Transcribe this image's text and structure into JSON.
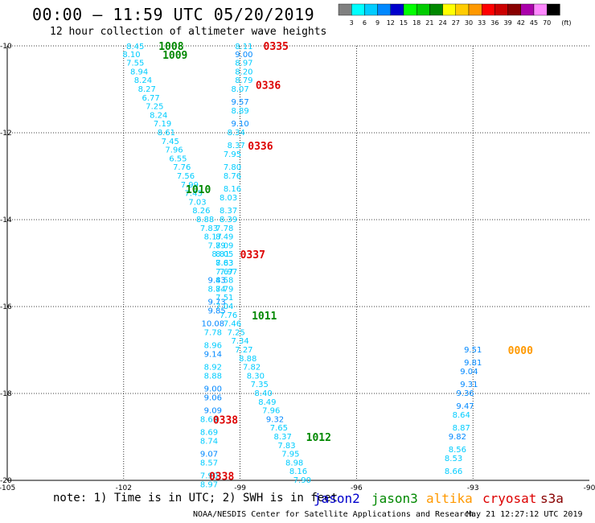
{
  "title": "00:00 – 11:59 UTC 05/20/2019",
  "subtitle": "12 hour collection of altimeter wave heights",
  "note": "note: 1) Time is in UTC; 2) SWH is in feet",
  "credit": "NOAA/NESDIS Center for Satellite Applications and Research",
  "timestamp": "May 21 12:27:12 UTC 2019",
  "legend": [
    {
      "name": "jason2",
      "color": "#0000cc"
    },
    {
      "name": "jason3",
      "color": "#008800"
    },
    {
      "name": "altika",
      "color": "#ff9900"
    },
    {
      "name": "cryosat",
      "color": "#dd0000"
    },
    {
      "name": "s3a",
      "color": "#880000"
    }
  ],
  "colorbar": {
    "unit": "(ft)",
    "labels": [
      "3",
      "6",
      "9",
      "12",
      "15",
      "18",
      "21",
      "24",
      "27",
      "30",
      "33",
      "36",
      "39",
      "42",
      "45",
      "70"
    ],
    "colors": [
      "#808080",
      "#00ffff",
      "#00ccff",
      "#0088ff",
      "#0000cc",
      "#00ff00",
      "#00cc00",
      "#008800",
      "#ffff00",
      "#ffcc00",
      "#ff9900",
      "#ff0000",
      "#cc0000",
      "#880000",
      "#aa00aa",
      "#ff88ff",
      "#000000"
    ]
  },
  "chart_data": {
    "type": "scatter",
    "xlim": [
      -105,
      -90
    ],
    "ylim": [
      -20,
      -10
    ],
    "xticks": [
      -105,
      -102,
      -99,
      -96,
      -93,
      -90
    ],
    "yticks": [
      -10,
      -12,
      -14,
      -16,
      -18,
      -20
    ],
    "grid": true,
    "tracks": [
      {
        "points": [
          [
            -101.7,
            -10.0,
            "8.45"
          ],
          [
            -101.8,
            -10.2,
            "8.10"
          ],
          [
            -101.7,
            -10.4,
            "7.55"
          ],
          [
            -101.6,
            -10.6,
            "8.94"
          ],
          [
            -101.5,
            -10.8,
            "8.24"
          ],
          [
            -101.4,
            -11.0,
            "8.27"
          ],
          [
            -101.3,
            -11.2,
            "6.77"
          ],
          [
            -101.2,
            -11.4,
            "7.25"
          ],
          [
            -101.1,
            -11.6,
            "8.24"
          ],
          [
            -101.0,
            -11.8,
            "7.19"
          ],
          [
            -100.9,
            -12.0,
            "8.61"
          ],
          [
            -100.8,
            -12.2,
            "7.45"
          ],
          [
            -100.7,
            -12.4,
            "7.96"
          ],
          [
            -100.6,
            -12.6,
            "6.55"
          ],
          [
            -100.5,
            -12.8,
            "7.76"
          ],
          [
            -100.4,
            -13.0,
            "7.56"
          ],
          [
            -100.3,
            -13.2,
            "7.99"
          ],
          [
            -100.2,
            -13.4,
            "7.45"
          ],
          [
            -100.1,
            -13.6,
            "7.03"
          ],
          [
            -100.0,
            -13.8,
            "8.26"
          ],
          [
            -99.9,
            -14.0,
            "8.88"
          ],
          [
            -99.8,
            -14.2,
            "7.83"
          ],
          [
            -99.7,
            -14.4,
            "8.17"
          ],
          [
            -99.6,
            -14.6,
            "7.79"
          ],
          [
            -99.5,
            -14.8,
            "8.81"
          ],
          [
            -99.4,
            -15.0,
            "7.63"
          ],
          [
            -99.3,
            -15.2,
            "7.97"
          ],
          [
            -99.6,
            -15.4,
            "9.43"
          ],
          [
            -99.6,
            -15.6,
            "8.84"
          ],
          [
            -99.6,
            -15.9,
            "9.73"
          ],
          [
            -99.6,
            -16.1,
            "9.85"
          ],
          [
            -99.7,
            -16.4,
            "10.08"
          ],
          [
            -99.7,
            -16.6,
            "7.78"
          ],
          [
            -99.7,
            -16.9,
            "8.96"
          ],
          [
            -99.7,
            -17.1,
            "9.14"
          ],
          [
            -99.7,
            -17.4,
            "8.92"
          ],
          [
            -99.7,
            -17.6,
            "8.88"
          ],
          [
            -99.7,
            -17.9,
            "9.00"
          ],
          [
            -99.7,
            -18.1,
            "9.06"
          ],
          [
            -99.7,
            -18.4,
            "9.09"
          ],
          [
            -99.8,
            -18.6,
            "8.69"
          ],
          [
            -99.8,
            -18.9,
            "8.69"
          ],
          [
            -99.8,
            -19.1,
            "8.74"
          ],
          [
            -99.8,
            -19.4,
            "9.07"
          ],
          [
            -99.8,
            -19.6,
            "8.57"
          ],
          [
            -99.8,
            -19.9,
            "7.90"
          ],
          [
            -99.8,
            -20.1,
            "8.97"
          ]
        ]
      },
      {
        "points": [
          [
            -98.9,
            -10.0,
            "8.11"
          ],
          [
            -98.9,
            -10.2,
            "9.00"
          ],
          [
            -98.9,
            -10.4,
            "8.97"
          ],
          [
            -98.9,
            -10.6,
            "8.20"
          ],
          [
            -98.9,
            -10.8,
            "8.79"
          ],
          [
            -99.0,
            -11.0,
            "8.07"
          ],
          [
            -99.0,
            -11.3,
            "9.57"
          ],
          [
            -99.0,
            -11.5,
            "8.89"
          ],
          [
            -99.0,
            -11.8,
            "9.10"
          ],
          [
            -99.1,
            -12.0,
            "8.34"
          ],
          [
            -99.1,
            -12.3,
            "8.37"
          ],
          [
            -99.2,
            -12.5,
            "7.95"
          ],
          [
            -99.2,
            -12.8,
            "7.80"
          ],
          [
            -99.2,
            -13.0,
            "8.76"
          ],
          [
            -99.2,
            -13.3,
            "8.16"
          ],
          [
            -99.3,
            -13.5,
            "8.03"
          ],
          [
            -99.3,
            -13.8,
            "8.37"
          ],
          [
            -99.3,
            -14.0,
            "8.39"
          ],
          [
            -99.4,
            -14.2,
            "7.78"
          ],
          [
            -99.4,
            -14.4,
            "8.49"
          ],
          [
            -99.4,
            -14.6,
            "8.09"
          ],
          [
            -99.4,
            -14.8,
            "8.05"
          ],
          [
            -99.4,
            -15.0,
            "8.83"
          ],
          [
            -99.4,
            -15.2,
            "7.67"
          ],
          [
            -99.4,
            -15.4,
            "8.58"
          ],
          [
            -99.4,
            -15.6,
            "7.79"
          ],
          [
            -99.4,
            -15.8,
            "7.51"
          ],
          [
            -99.4,
            -16.0,
            "7.04"
          ],
          [
            -99.3,
            -16.2,
            "7.76"
          ],
          [
            -99.2,
            -16.4,
            "7.46"
          ],
          [
            -99.1,
            -16.6,
            "7.25"
          ],
          [
            -99.0,
            -16.8,
            "7.34"
          ],
          [
            -98.9,
            -17.0,
            "7.27"
          ],
          [
            -98.8,
            -17.2,
            "8.88"
          ],
          [
            -98.7,
            -17.4,
            "7.82"
          ],
          [
            -98.6,
            -17.6,
            "8.30"
          ],
          [
            -98.5,
            -17.8,
            "7.35"
          ],
          [
            -98.4,
            -18.0,
            "8.40"
          ],
          [
            -98.3,
            -18.2,
            "8.49"
          ],
          [
            -98.2,
            -18.4,
            "7.96"
          ],
          [
            -98.1,
            -18.6,
            "9.32"
          ],
          [
            -98.0,
            -18.8,
            "7.65"
          ],
          [
            -97.9,
            -19.0,
            "8.37"
          ],
          [
            -97.8,
            -19.2,
            "7.83"
          ],
          [
            -97.7,
            -19.4,
            "7.95"
          ],
          [
            -97.6,
            -19.6,
            "8.98"
          ],
          [
            -97.5,
            -19.8,
            "8.16"
          ],
          [
            -97.4,
            -20.0,
            "7.90"
          ]
        ]
      },
      {
        "points": [
          [
            -93.0,
            -17.0,
            "9.51"
          ],
          [
            -93.0,
            -17.3,
            "9.81"
          ],
          [
            -93.1,
            -17.5,
            "9.04"
          ],
          [
            -93.1,
            -17.8,
            "9.31"
          ],
          [
            -93.2,
            -18.0,
            "9.36"
          ],
          [
            -93.2,
            -18.3,
            "9.47"
          ],
          [
            -93.3,
            -18.5,
            "8.64"
          ],
          [
            -93.3,
            -18.8,
            "8.87"
          ],
          [
            -93.4,
            -19.0,
            "9.82"
          ],
          [
            -93.4,
            -19.3,
            "8.56"
          ],
          [
            -93.5,
            -19.5,
            "8.53"
          ],
          [
            -93.5,
            -19.8,
            "8.66"
          ]
        ]
      }
    ],
    "time_labels": [
      {
        "x": -101.1,
        "y": -10.0,
        "text": "1008",
        "color": "#008800"
      },
      {
        "x": -101.0,
        "y": -10.2,
        "text": "1009",
        "color": "#008800"
      },
      {
        "x": -98.4,
        "y": -10.0,
        "text": "0335",
        "color": "#dd0000"
      },
      {
        "x": -98.6,
        "y": -10.9,
        "text": "0336",
        "color": "#dd0000"
      },
      {
        "x": -98.8,
        "y": -12.3,
        "text": "0336",
        "color": "#dd0000"
      },
      {
        "x": -100.4,
        "y": -13.3,
        "text": "1010",
        "color": "#008800"
      },
      {
        "x": -99.0,
        "y": -14.8,
        "text": "0337",
        "color": "#dd0000"
      },
      {
        "x": -98.7,
        "y": -16.2,
        "text": "1011",
        "color": "#008800"
      },
      {
        "x": -92.1,
        "y": -17.0,
        "text": "0000",
        "color": "#ff9900"
      },
      {
        "x": -99.7,
        "y": -18.6,
        "text": "0338",
        "color": "#dd0000"
      },
      {
        "x": -97.3,
        "y": -19.0,
        "text": "1012",
        "color": "#008800"
      },
      {
        "x": -99.8,
        "y": -19.9,
        "text": "0338",
        "color": "#dd0000"
      }
    ]
  }
}
